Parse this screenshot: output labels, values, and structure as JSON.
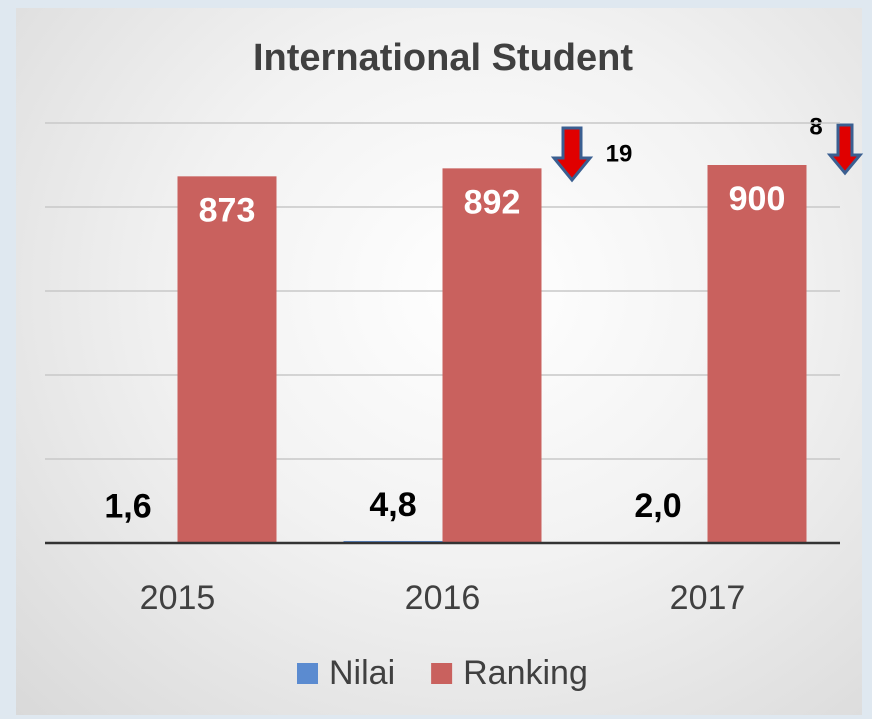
{
  "chart_data": {
    "type": "bar",
    "title": "International Student",
    "categories": [
      "2015",
      "2016",
      "2017"
    ],
    "series": [
      {
        "name": "Nilai",
        "color": "#5b8bd0",
        "values": [
          1.6,
          4.8,
          2.0
        ],
        "value_labels": [
          "1,6",
          "4,8",
          "2,0"
        ]
      },
      {
        "name": "Ranking",
        "color": "#c9615e",
        "values": [
          873,
          892,
          900
        ]
      }
    ],
    "ylim": [
      0,
      1000
    ],
    "yticks": [
      0,
      200,
      400,
      600,
      800,
      1000
    ],
    "grid": true,
    "annotations": [
      "19",
      "8"
    ],
    "legend": "bottom"
  }
}
